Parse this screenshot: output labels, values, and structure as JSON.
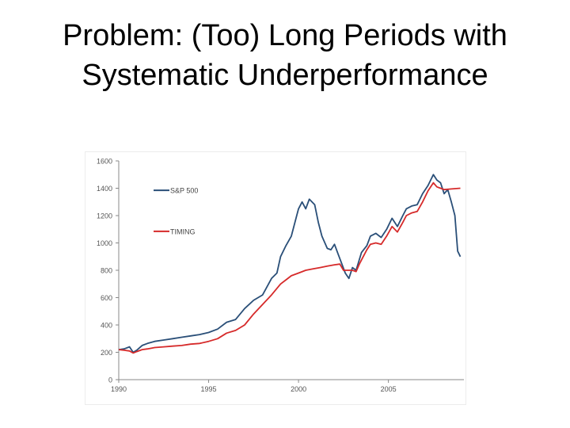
{
  "slide": {
    "title_line1": "Problem: (Too) Long Periods with",
    "title_line2": "Systematic Underperformance"
  },
  "chart_data": {
    "type": "line",
    "title": "",
    "xlabel": "",
    "ylabel": "",
    "xlim": [
      1990,
      2009.2
    ],
    "ylim": [
      0,
      1600
    ],
    "x_ticks": [
      1990,
      1995,
      2000,
      2005
    ],
    "y_ticks": [
      0,
      200,
      400,
      600,
      800,
      1000,
      1200,
      1400,
      1600
    ],
    "legend": [
      "S&P 500",
      "TIMING"
    ],
    "legend_position": "top-left",
    "grid": false,
    "series": [
      {
        "name": "S&P 500",
        "color": "#2a4f78",
        "points": [
          [
            1990,
            220
          ],
          [
            1990.3,
            225
          ],
          [
            1990.6,
            240
          ],
          [
            1990.8,
            200
          ],
          [
            1991.0,
            215
          ],
          [
            1991.3,
            250
          ],
          [
            1991.6,
            265
          ],
          [
            1992.0,
            280
          ],
          [
            1992.5,
            290
          ],
          [
            1993.0,
            300
          ],
          [
            1993.5,
            310
          ],
          [
            1994.0,
            320
          ],
          [
            1994.5,
            330
          ],
          [
            1995.0,
            345
          ],
          [
            1995.5,
            370
          ],
          [
            1996.0,
            420
          ],
          [
            1996.5,
            440
          ],
          [
            1997.0,
            520
          ],
          [
            1997.5,
            580
          ],
          [
            1998.0,
            620
          ],
          [
            1998.5,
            740
          ],
          [
            1998.8,
            780
          ],
          [
            1999.0,
            900
          ],
          [
            1999.3,
            980
          ],
          [
            1999.6,
            1050
          ],
          [
            1999.9,
            1200
          ],
          [
            2000.0,
            1250
          ],
          [
            2000.2,
            1300
          ],
          [
            2000.4,
            1250
          ],
          [
            2000.6,
            1320
          ],
          [
            2000.9,
            1280
          ],
          [
            2001.1,
            1150
          ],
          [
            2001.3,
            1050
          ],
          [
            2001.6,
            960
          ],
          [
            2001.8,
            950
          ],
          [
            2002.0,
            990
          ],
          [
            2002.2,
            920
          ],
          [
            2002.4,
            850
          ],
          [
            2002.6,
            780
          ],
          [
            2002.8,
            740
          ],
          [
            2003.0,
            820
          ],
          [
            2003.2,
            800
          ],
          [
            2003.5,
            930
          ],
          [
            2003.8,
            980
          ],
          [
            2004.0,
            1050
          ],
          [
            2004.3,
            1070
          ],
          [
            2004.6,
            1040
          ],
          [
            2004.9,
            1100
          ],
          [
            2005.2,
            1180
          ],
          [
            2005.5,
            1120
          ],
          [
            2005.8,
            1200
          ],
          [
            2006.0,
            1250
          ],
          [
            2006.3,
            1270
          ],
          [
            2006.6,
            1280
          ],
          [
            2006.9,
            1360
          ],
          [
            2007.2,
            1420
          ],
          [
            2007.5,
            1500
          ],
          [
            2007.7,
            1460
          ],
          [
            2007.9,
            1440
          ],
          [
            2008.1,
            1360
          ],
          [
            2008.3,
            1390
          ],
          [
            2008.5,
            1300
          ],
          [
            2008.7,
            1200
          ],
          [
            2008.85,
            940
          ],
          [
            2009.0,
            900
          ]
        ]
      },
      {
        "name": "TIMING",
        "color": "#d62a2a",
        "points": [
          [
            1990,
            220
          ],
          [
            1990.3,
            215
          ],
          [
            1990.6,
            210
          ],
          [
            1990.8,
            195
          ],
          [
            1991.0,
            205
          ],
          [
            1991.3,
            220
          ],
          [
            1991.6,
            225
          ],
          [
            1992.0,
            235
          ],
          [
            1992.5,
            240
          ],
          [
            1993.0,
            245
          ],
          [
            1993.5,
            250
          ],
          [
            1994.0,
            260
          ],
          [
            1994.5,
            265
          ],
          [
            1995.0,
            280
          ],
          [
            1995.5,
            300
          ],
          [
            1996.0,
            340
          ],
          [
            1996.5,
            360
          ],
          [
            1997.0,
            400
          ],
          [
            1997.5,
            480
          ],
          [
            1998.0,
            550
          ],
          [
            1998.5,
            620
          ],
          [
            1999.0,
            700
          ],
          [
            1999.3,
            730
          ],
          [
            1999.6,
            760
          ],
          [
            2000.0,
            780
          ],
          [
            2000.4,
            800
          ],
          [
            2000.8,
            810
          ],
          [
            2001.2,
            820
          ],
          [
            2001.6,
            830
          ],
          [
            2002.0,
            840
          ],
          [
            2002.3,
            845
          ],
          [
            2002.5,
            800
          ],
          [
            2003.0,
            800
          ],
          [
            2003.2,
            790
          ],
          [
            2003.4,
            850
          ],
          [
            2003.6,
            900
          ],
          [
            2003.8,
            950
          ],
          [
            2004.0,
            990
          ],
          [
            2004.3,
            1000
          ],
          [
            2004.6,
            990
          ],
          [
            2004.9,
            1050
          ],
          [
            2005.2,
            1120
          ],
          [
            2005.5,
            1080
          ],
          [
            2005.8,
            1150
          ],
          [
            2006.0,
            1200
          ],
          [
            2006.3,
            1220
          ],
          [
            2006.6,
            1230
          ],
          [
            2006.9,
            1300
          ],
          [
            2007.2,
            1380
          ],
          [
            2007.5,
            1440
          ],
          [
            2007.7,
            1410
          ],
          [
            2007.9,
            1400
          ],
          [
            2008.1,
            1390
          ],
          [
            2008.5,
            1395
          ],
          [
            2009.0,
            1400
          ]
        ]
      }
    ]
  }
}
